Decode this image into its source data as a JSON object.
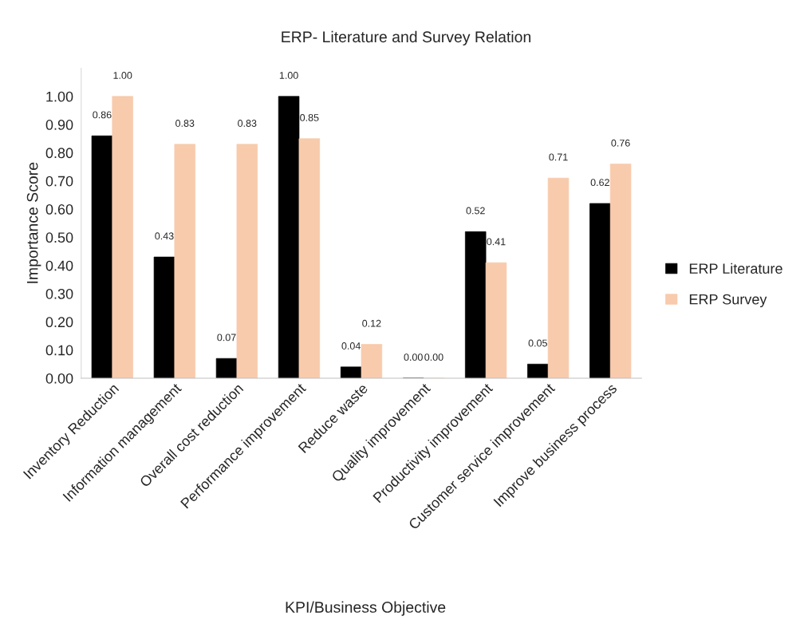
{
  "chart_data": {
    "type": "bar",
    "title": "ERP- Literature and Survey Relation",
    "xlabel": "KPI/Business Objective",
    "ylabel": "Importance Score",
    "categories": [
      "Inventory Reduction",
      "Information management",
      "Overall cost reduction",
      "Performance improvement",
      "Reduce waste",
      "Quality improvement",
      "Productivity improvement",
      "Customer service improvement",
      "Improve business process"
    ],
    "series": [
      {
        "name": "ERP Literature",
        "color": "#000000",
        "values": [
          0.86,
          0.43,
          0.07,
          1.0,
          0.04,
          0.0,
          0.52,
          0.05,
          0.62
        ],
        "value_labels": [
          "0.86",
          "0.43",
          "0.07",
          "1.00",
          "0.04",
          "0.00",
          "0.52",
          "0.05",
          "0.62"
        ]
      },
      {
        "name": "ERP Survey",
        "color": "#f8cbad",
        "values": [
          1.0,
          0.83,
          0.83,
          0.85,
          0.12,
          0.0,
          0.41,
          0.71,
          0.76
        ],
        "value_labels": [
          "1.00",
          "0.83",
          "0.83",
          "0.85",
          "0.12",
          "0.00",
          "0.41",
          "0.71",
          "0.76"
        ]
      }
    ],
    "ylim": [
      0,
      1.1
    ],
    "yticks": [
      {
        "value": 0,
        "label": "0.00"
      },
      {
        "value": 0.1,
        "label": "0.10"
      },
      {
        "value": 0.2,
        "label": "0.20"
      },
      {
        "value": 0.3,
        "label": "0.30"
      },
      {
        "value": 0.4,
        "label": "0.40"
      },
      {
        "value": 0.5,
        "label": "0.50"
      },
      {
        "value": 0.6,
        "label": "0.60"
      },
      {
        "value": 0.7,
        "label": "0.70"
      },
      {
        "value": 0.8,
        "label": "0.80"
      },
      {
        "value": 0.9,
        "label": "0.90"
      },
      {
        "value": 1.0,
        "label": "1.00"
      }
    ],
    "grid": false,
    "legend": "right"
  }
}
